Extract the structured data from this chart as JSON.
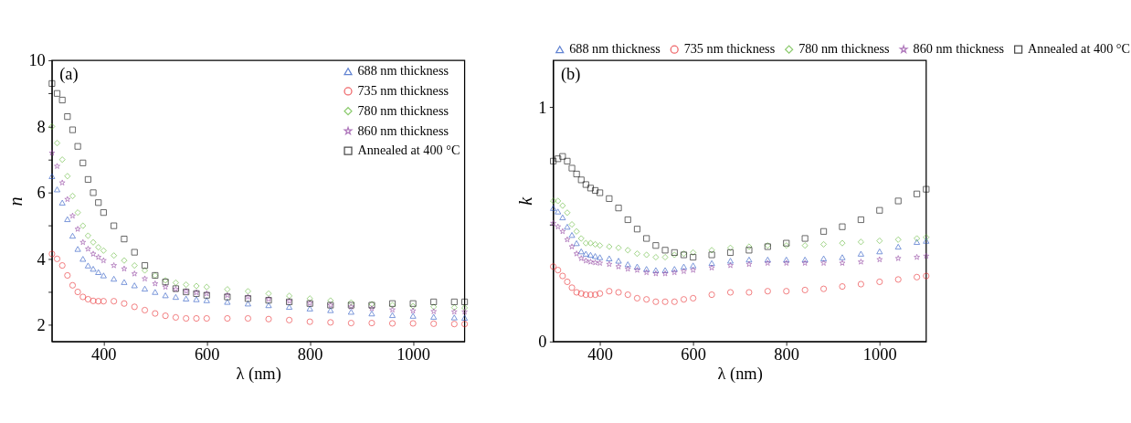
{
  "chart_data": [
    {
      "type": "scatter",
      "annotations": [
        "(a)"
      ],
      "xlabel": "λ (nm)",
      "ylabel": "n",
      "legend": "top right",
      "grid": false,
      "x": [
        300,
        310,
        320,
        330,
        340,
        350,
        360,
        370,
        380,
        390,
        400,
        420,
        440,
        460,
        480,
        500,
        520,
        540,
        560,
        580,
        600,
        640,
        680,
        720,
        760,
        800,
        840,
        880,
        920,
        960,
        1000,
        1040,
        1080,
        1100
      ],
      "xlim": [
        300,
        1100
      ],
      "xticks": [
        400,
        600,
        800,
        1000
      ],
      "ylim": [
        1.5,
        10
      ],
      "yticks": [
        2,
        {
          "value": 3,
          "label": null
        },
        4,
        {
          "value": 5,
          "label": null
        },
        6,
        {
          "value": 7,
          "label": null
        },
        8,
        {
          "value": 9,
          "label": null
        },
        10
      ],
      "series": [
        {
          "name": "688 nm thickness",
          "color": "#1f4fbf",
          "marker": "triangle",
          "values": [
            6.5,
            6.1,
            5.7,
            5.2,
            4.7,
            4.3,
            4.0,
            3.8,
            3.7,
            3.6,
            3.5,
            3.4,
            3.3,
            3.2,
            3.1,
            3.0,
            2.9,
            2.85,
            2.8,
            2.78,
            2.75,
            2.7,
            2.65,
            2.6,
            2.55,
            2.5,
            2.45,
            2.4,
            2.35,
            2.3,
            2.28,
            2.25,
            2.23,
            2.22
          ]
        },
        {
          "name": "735 nm thickness",
          "color": "#e8262a",
          "marker": "circle",
          "values": [
            4.15,
            4.0,
            3.8,
            3.5,
            3.2,
            3.0,
            2.85,
            2.78,
            2.73,
            2.72,
            2.72,
            2.72,
            2.65,
            2.55,
            2.45,
            2.35,
            2.28,
            2.23,
            2.2,
            2.2,
            2.2,
            2.2,
            2.2,
            2.18,
            2.15,
            2.1,
            2.08,
            2.06,
            2.06,
            2.05,
            2.05,
            2.04,
            2.03,
            2.03
          ]
        },
        {
          "name": "780 nm thickness",
          "color": "#5cb531",
          "marker": "diamond",
          "values": [
            8.0,
            7.5,
            7.0,
            6.5,
            5.9,
            5.4,
            5.0,
            4.7,
            4.5,
            4.35,
            4.25,
            4.1,
            3.95,
            3.8,
            3.65,
            3.5,
            3.35,
            3.28,
            3.22,
            3.18,
            3.15,
            3.08,
            3.02,
            2.95,
            2.88,
            2.8,
            2.74,
            2.68,
            2.63,
            2.6,
            2.57,
            2.55,
            2.53,
            2.52
          ]
        },
        {
          "name": "860 nm thickness",
          "color": "#8e3f9f",
          "marker": "star",
          "values": [
            7.2,
            6.8,
            6.3,
            5.8,
            5.3,
            4.9,
            4.5,
            4.3,
            4.15,
            4.05,
            3.95,
            3.8,
            3.7,
            3.55,
            3.4,
            3.25,
            3.15,
            3.08,
            3.02,
            2.98,
            2.95,
            2.9,
            2.85,
            2.78,
            2.72,
            2.66,
            2.6,
            2.55,
            2.5,
            2.46,
            2.43,
            2.41,
            2.4,
            2.4
          ]
        },
        {
          "name": "Annealed at 400 °C",
          "color": "#000000",
          "marker": "square",
          "values": [
            9.3,
            9.0,
            8.8,
            8.3,
            7.9,
            7.4,
            6.9,
            6.4,
            6.0,
            5.7,
            5.4,
            5.0,
            4.6,
            4.2,
            3.8,
            3.5,
            3.3,
            3.1,
            3.0,
            2.95,
            2.9,
            2.85,
            2.8,
            2.75,
            2.7,
            2.65,
            2.6,
            2.6,
            2.6,
            2.65,
            2.65,
            2.7,
            2.7,
            2.7
          ]
        }
      ]
    },
    {
      "type": "scatter",
      "annotations": [
        "(b)"
      ],
      "xlabel": "λ (nm)",
      "ylabel": "k",
      "legend": "top",
      "grid": false,
      "x": [
        300,
        310,
        320,
        330,
        340,
        350,
        360,
        370,
        380,
        390,
        400,
        420,
        440,
        460,
        480,
        500,
        520,
        540,
        560,
        580,
        600,
        640,
        680,
        720,
        760,
        800,
        840,
        880,
        920,
        960,
        1000,
        1040,
        1080,
        1100
      ],
      "xlim": [
        300,
        1100
      ],
      "xticks": [
        400,
        600,
        800,
        1000
      ],
      "ylim": [
        0,
        1.2
      ],
      "yticks": [
        0,
        {
          "value": 0.5,
          "label": null
        },
        1
      ],
      "series": [
        {
          "name": "688 nm thickness",
          "color": "#1f4fbf",
          "marker": "triangle",
          "values": [
            0.57,
            0.555,
            0.53,
            0.49,
            0.455,
            0.42,
            0.385,
            0.375,
            0.37,
            0.365,
            0.36,
            0.355,
            0.345,
            0.33,
            0.32,
            0.31,
            0.305,
            0.305,
            0.31,
            0.32,
            0.325,
            0.335,
            0.345,
            0.35,
            0.35,
            0.35,
            0.35,
            0.355,
            0.36,
            0.375,
            0.385,
            0.405,
            0.425,
            0.43
          ]
        },
        {
          "name": "735 nm thickness",
          "color": "#e8262a",
          "marker": "circle",
          "values": [
            0.32,
            0.305,
            0.28,
            0.255,
            0.23,
            0.21,
            0.205,
            0.2,
            0.2,
            0.2,
            0.205,
            0.215,
            0.21,
            0.2,
            0.185,
            0.18,
            0.17,
            0.17,
            0.17,
            0.18,
            0.185,
            0.2,
            0.21,
            0.21,
            0.215,
            0.215,
            0.22,
            0.225,
            0.235,
            0.245,
            0.255,
            0.265,
            0.275,
            0.28
          ]
        },
        {
          "name": "780 nm thickness",
          "color": "#5cb531",
          "marker": "diamond",
          "values": [
            0.6,
            0.6,
            0.58,
            0.55,
            0.5,
            0.47,
            0.44,
            0.42,
            0.42,
            0.415,
            0.41,
            0.405,
            0.4,
            0.39,
            0.375,
            0.37,
            0.36,
            0.36,
            0.37,
            0.375,
            0.38,
            0.39,
            0.4,
            0.405,
            0.41,
            0.41,
            0.41,
            0.415,
            0.42,
            0.425,
            0.43,
            0.435,
            0.44,
            0.445
          ]
        },
        {
          "name": "860 nm thickness",
          "color": "#8e3f9f",
          "marker": "star",
          "values": [
            0.505,
            0.49,
            0.47,
            0.435,
            0.405,
            0.375,
            0.355,
            0.345,
            0.34,
            0.337,
            0.335,
            0.33,
            0.32,
            0.31,
            0.305,
            0.295,
            0.29,
            0.29,
            0.295,
            0.3,
            0.305,
            0.315,
            0.325,
            0.33,
            0.335,
            0.335,
            0.335,
            0.335,
            0.335,
            0.34,
            0.35,
            0.355,
            0.36,
            0.365
          ]
        },
        {
          "name": "Annealed at 400 °C",
          "color": "#000000",
          "marker": "square",
          "values": [
            0.77,
            0.78,
            0.79,
            0.77,
            0.74,
            0.715,
            0.69,
            0.67,
            0.655,
            0.645,
            0.635,
            0.61,
            0.57,
            0.52,
            0.48,
            0.44,
            0.41,
            0.39,
            0.38,
            0.37,
            0.36,
            0.37,
            0.38,
            0.39,
            0.405,
            0.42,
            0.44,
            0.47,
            0.49,
            0.52,
            0.56,
            0.6,
            0.63,
            0.65
          ]
        }
      ]
    }
  ]
}
